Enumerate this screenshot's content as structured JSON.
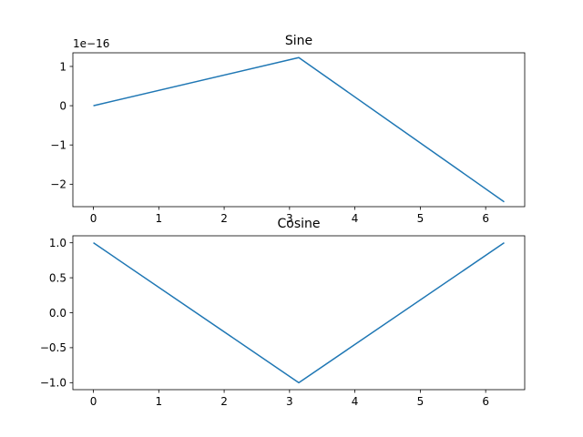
{
  "chart_data": [
    {
      "type": "line",
      "title": "Sine",
      "x": [
        0,
        3.14159,
        6.28319
      ],
      "y": [
        0,
        1.2246e-16,
        -2.4493e-16
      ],
      "xlim": [
        -0.314,
        6.597
      ],
      "ylim": [
        -2.5718e-16,
        1.3471e-16
      ],
      "xticks": [
        0,
        1,
        2,
        3,
        4,
        5,
        6
      ],
      "xtick_labels": [
        "0",
        "1",
        "2",
        "3",
        "4",
        "5",
        "6"
      ],
      "yticks": [
        1e-16,
        0,
        -1e-16,
        -2e-16
      ],
      "ytick_labels": [
        "1",
        "0",
        "−1",
        "−2"
      ],
      "offset_text": "1e−16",
      "grid": false,
      "line_color": "#1f77b4"
    },
    {
      "type": "line",
      "title": "Cosine",
      "x": [
        0,
        3.14159,
        6.28319
      ],
      "y": [
        1,
        -1,
        1
      ],
      "xlim": [
        -0.314,
        6.597
      ],
      "ylim": [
        -1.1,
        1.1
      ],
      "xticks": [
        0,
        1,
        2,
        3,
        4,
        5,
        6
      ],
      "xtick_labels": [
        "0",
        "1",
        "2",
        "3",
        "4",
        "5",
        "6"
      ],
      "yticks": [
        1.0,
        0.5,
        0.0,
        -0.5,
        -1.0
      ],
      "ytick_labels": [
        "1.0",
        "0.5",
        "0.0",
        "−0.5",
        "−1.0"
      ],
      "grid": false,
      "line_color": "#1f77b4"
    }
  ]
}
